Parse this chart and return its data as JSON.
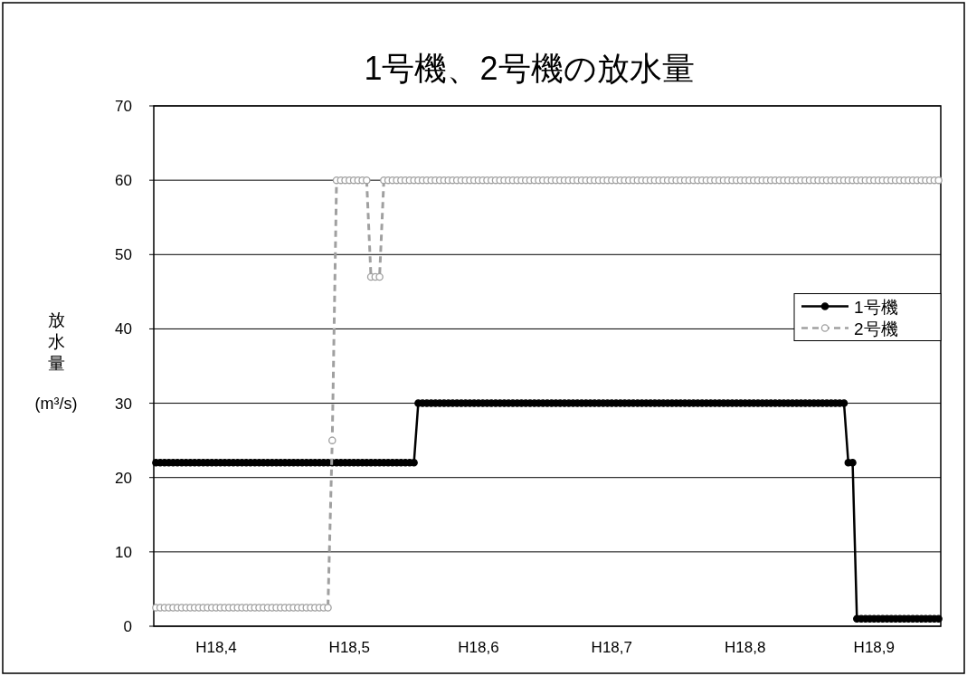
{
  "chart_data": {
    "type": "line",
    "title": "1号機、2号機の放水量",
    "ylabel": "放水量 (m³/s)",
    "categories": [
      null,
      null,
      null,
      null,
      null,
      null,
      null,
      null,
      null,
      null,
      null,
      null,
      null,
      null,
      "H18,4",
      null,
      null,
      null,
      null,
      null,
      null,
      null,
      null,
      null,
      null,
      null,
      null,
      null,
      null,
      null,
      null,
      null,
      null,
      null,
      null,
      null,
      null,
      null,
      null,
      null,
      null,
      null,
      null,
      null,
      null,
      "H18,5",
      null,
      null,
      null,
      null,
      null,
      null,
      null,
      null,
      null,
      null,
      null,
      null,
      null,
      null,
      null,
      null,
      null,
      null,
      null,
      null,
      null,
      null,
      null,
      null,
      null,
      null,
      null,
      null,
      null,
      "H18,6",
      null,
      null,
      null,
      null,
      null,
      null,
      null,
      null,
      null,
      null,
      null,
      null,
      null,
      null,
      null,
      null,
      null,
      null,
      null,
      null,
      null,
      null,
      null,
      null,
      null,
      null,
      null,
      null,
      null,
      null,
      "H18,7",
      null,
      null,
      null,
      null,
      null,
      null,
      null,
      null,
      null,
      null,
      null,
      null,
      null,
      null,
      null,
      null,
      null,
      null,
      null,
      null,
      null,
      null,
      null,
      null,
      null,
      null,
      null,
      null,
      null,
      null,
      "H18,8",
      null,
      null,
      null,
      null,
      null,
      null,
      null,
      null,
      null,
      null,
      null,
      null,
      null,
      null,
      null,
      null,
      null,
      null,
      null,
      null,
      null,
      null,
      null,
      null,
      null,
      null,
      null,
      null,
      null,
      "H18,9",
      null,
      null,
      null,
      null,
      null,
      null,
      null,
      null,
      null,
      null,
      null,
      null,
      null,
      null,
      null
    ],
    "series": [
      {
        "name": "1号機",
        "color": "#000000",
        "line_style": "solid",
        "values": [
          22,
          22,
          22,
          22,
          22,
          22,
          22,
          22,
          22,
          22,
          22,
          22,
          22,
          22,
          22,
          22,
          22,
          22,
          22,
          22,
          22,
          22,
          22,
          22,
          22,
          22,
          22,
          22,
          22,
          22,
          22,
          22,
          22,
          22,
          22,
          22,
          22,
          22,
          22,
          22,
          22,
          22,
          22,
          22,
          22,
          22,
          22,
          22,
          22,
          22,
          22,
          22,
          22,
          22,
          22,
          22,
          22,
          22,
          22,
          22,
          22,
          30,
          30,
          30,
          30,
          30,
          30,
          30,
          30,
          30,
          30,
          30,
          30,
          30,
          30,
          30,
          30,
          30,
          30,
          30,
          30,
          30,
          30,
          30,
          30,
          30,
          30,
          30,
          30,
          30,
          30,
          30,
          30,
          30,
          30,
          30,
          30,
          30,
          30,
          30,
          30,
          30,
          30,
          30,
          30,
          30,
          30,
          30,
          30,
          30,
          30,
          30,
          30,
          30,
          30,
          30,
          30,
          30,
          30,
          30,
          30,
          30,
          30,
          30,
          30,
          30,
          30,
          30,
          30,
          30,
          30,
          30,
          30,
          30,
          30,
          30,
          30,
          30,
          30,
          30,
          30,
          30,
          30,
          30,
          30,
          30,
          30,
          30,
          30,
          30,
          30,
          30,
          30,
          30,
          30,
          30,
          30,
          30,
          30,
          30,
          30,
          22,
          22,
          1,
          1,
          1,
          1,
          1,
          1,
          1,
          1,
          1,
          1,
          1,
          1,
          1,
          1,
          1,
          1,
          1,
          1,
          1,
          1
        ]
      },
      {
        "name": "2号機",
        "color": "#a0a0a0",
        "line_style": "dashed",
        "values": [
          2.5,
          2.5,
          2.5,
          2.5,
          2.5,
          2.5,
          2.5,
          2.5,
          2.5,
          2.5,
          2.5,
          2.5,
          2.5,
          2.5,
          2.5,
          2.5,
          2.5,
          2.5,
          2.5,
          2.5,
          2.5,
          2.5,
          2.5,
          2.5,
          2.5,
          2.5,
          2.5,
          2.5,
          2.5,
          2.5,
          2.5,
          2.5,
          2.5,
          2.5,
          2.5,
          2.5,
          2.5,
          2.5,
          2.5,
          2.5,
          2.5,
          25,
          60,
          60,
          60,
          60,
          60,
          60,
          60,
          60,
          47,
          47,
          47,
          60,
          60,
          60,
          60,
          60,
          60,
          60,
          60,
          60,
          60,
          60,
          60,
          60,
          60,
          60,
          60,
          60,
          60,
          60,
          60,
          60,
          60,
          60,
          60,
          60,
          60,
          60,
          60,
          60,
          60,
          60,
          60,
          60,
          60,
          60,
          60,
          60,
          60,
          60,
          60,
          60,
          60,
          60,
          60,
          60,
          60,
          60,
          60,
          60,
          60,
          60,
          60,
          60,
          60,
          60,
          60,
          60,
          60,
          60,
          60,
          60,
          60,
          60,
          60,
          60,
          60,
          60,
          60,
          60,
          60,
          60,
          60,
          60,
          60,
          60,
          60,
          60,
          60,
          60,
          60,
          60,
          60,
          60,
          60,
          60,
          60,
          60,
          60,
          60,
          60,
          60,
          60,
          60,
          60,
          60,
          60,
          60,
          60,
          60,
          60,
          60,
          60,
          60,
          60,
          60,
          60,
          60,
          60,
          60,
          60,
          60,
          60,
          60,
          60,
          60,
          60,
          60,
          60,
          60,
          60,
          60,
          60,
          60,
          60,
          60,
          60,
          60,
          60,
          60,
          60
        ]
      }
    ],
    "ylim": [
      0,
      70
    ],
    "yticks": [
      0,
      10,
      20,
      30,
      40,
      50,
      60,
      70
    ],
    "grid": "y",
    "legend": "right",
    "marker": "circle"
  }
}
